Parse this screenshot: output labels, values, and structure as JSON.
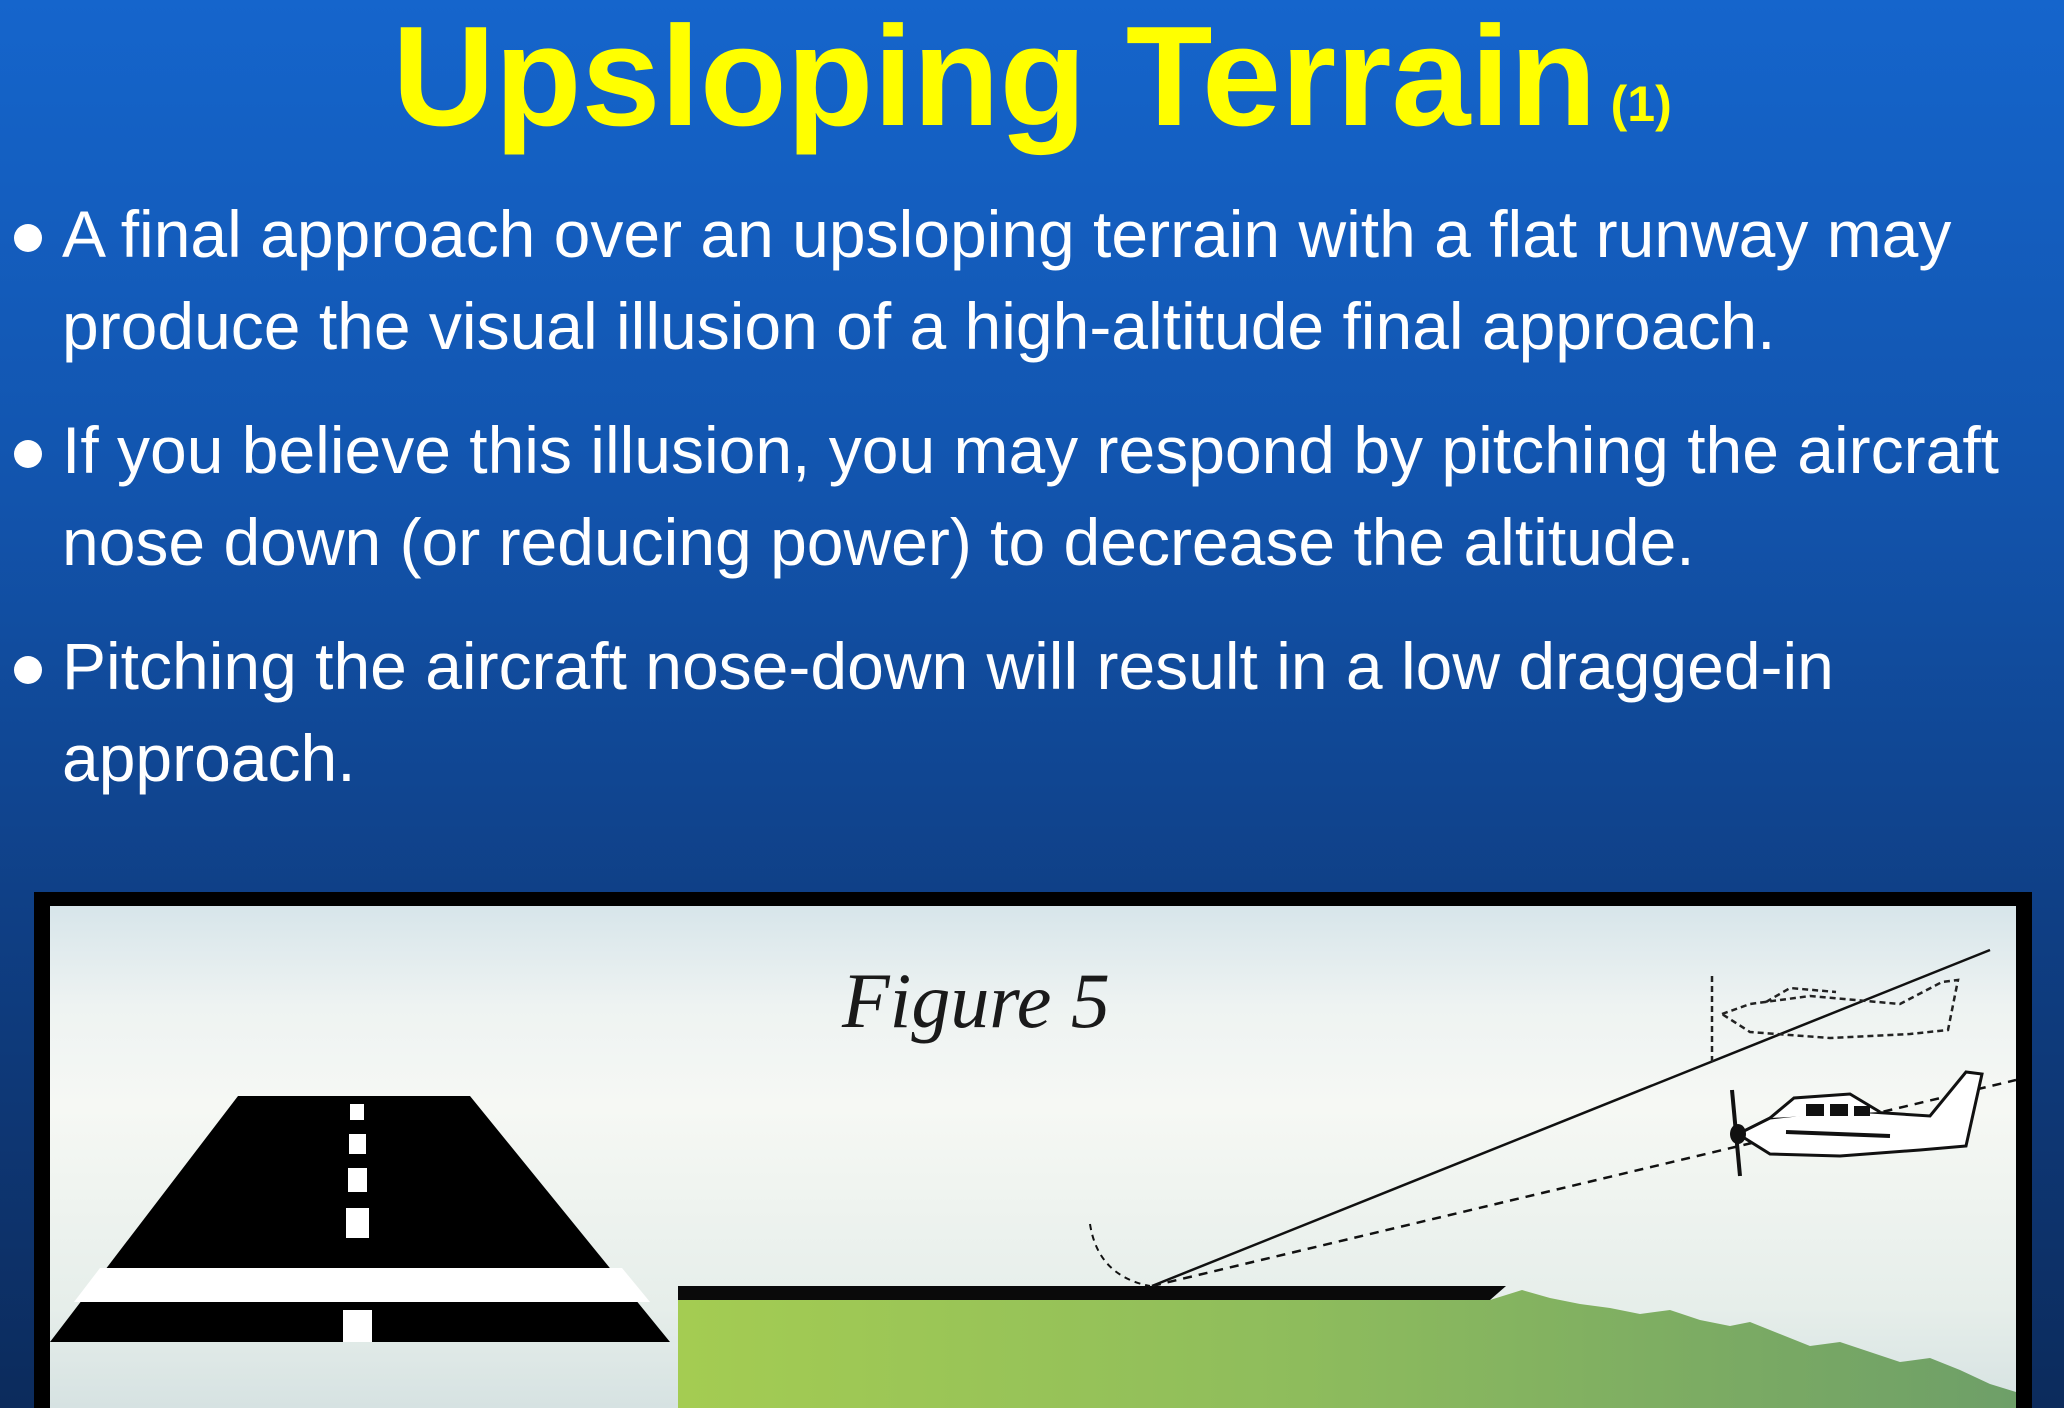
{
  "title": {
    "main": "Upsloping Terrain",
    "sub": "(1)"
  },
  "bullets": [
    {
      "text": "A final approach over an upsloping terrain with a flat runway may produce the visual illusion of a high-altitude final approach."
    },
    {
      "text": "If you believe this illusion, you may respond by pitching the aircraft nose down (or reducing power) to decrease the altitude."
    },
    {
      "text": "Pitching the aircraft nose-down will result in a low dragged-in approach."
    }
  ],
  "figure": {
    "label": "Figure 5"
  },
  "colors": {
    "title": "#ffff00",
    "text": "#ffffff",
    "background_top": "#1565cc",
    "background_bottom": "#0c2b5c",
    "runway": "#000000",
    "terrain_light": "#a4cc52",
    "terrain_dark": "#6e9f68"
  },
  "icons": [
    "bullet-dot",
    "runway-perspective-icon",
    "airplane-actual-icon",
    "airplane-perceived-icon"
  ]
}
